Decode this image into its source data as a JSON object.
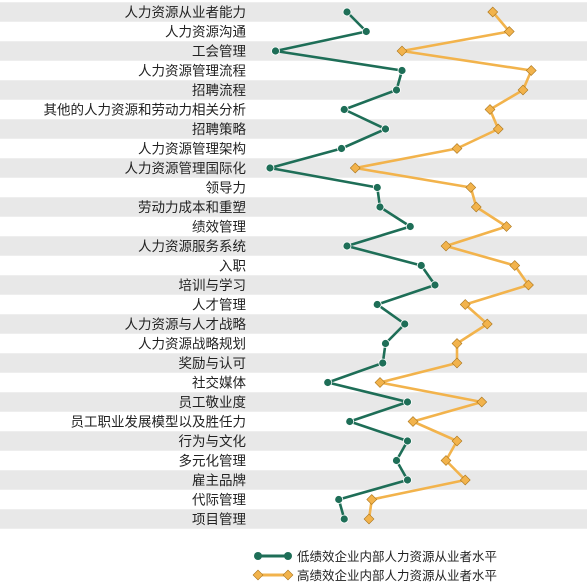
{
  "chart_data": {
    "type": "line",
    "orientation": "horizontal",
    "categories": [
      "人力资源从业者能力",
      "人力资源沟通",
      "工会管理",
      "人力资源管理流程",
      "招聘流程",
      "其他的人力资源和劳动力相关分析",
      "招聘策略",
      "人力资源管理架构",
      "人力资源管理国际化",
      "领导力",
      "劳动力成本和重塑",
      "绩效管理",
      "人力资源服务系统",
      "入职",
      "培训与学习",
      "人才管理",
      "人力资源与人才战略",
      "人力资源战略规划",
      "奖励与认可",
      "社交媒体",
      "员工敬业度",
      "员工职业发展模型以及胜任力",
      "行为与文化",
      "多元化管理",
      "雇主品牌",
      "代际管理",
      "项目管理"
    ],
    "series": [
      {
        "name": "低绩效企业内部人力资源从业者水平",
        "color": "#1e6e57",
        "marker": "circle",
        "values": [
          28,
          35,
          2,
          48,
          46,
          27,
          42,
          26,
          0,
          39,
          40,
          51,
          28,
          55,
          60,
          39,
          49,
          42,
          41,
          21,
          50,
          29,
          50,
          46,
          50,
          25,
          27
        ]
      },
      {
        "name": "高绩效企业内部人力资源从业者水平",
        "color": "#f2b34c",
        "marker": "diamond",
        "values": [
          81,
          87,
          48,
          95,
          92,
          80,
          83,
          68,
          31,
          73,
          75,
          86,
          64,
          89,
          94,
          71,
          79,
          68,
          68,
          40,
          77,
          52,
          68,
          64,
          71,
          37,
          36
        ]
      }
    ],
    "xlim": [
      0,
      100
    ],
    "grid": false,
    "legend": "bottom",
    "row_band_color": "#e8e8e8"
  }
}
